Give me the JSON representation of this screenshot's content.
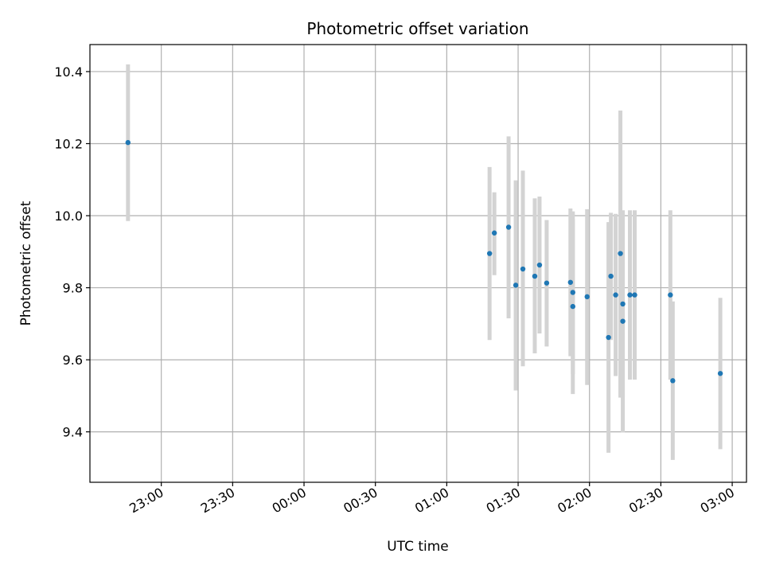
{
  "chart_data": {
    "type": "scatter",
    "title": "Photometric offset variation",
    "xlabel": "UTC time",
    "ylabel": "Photometric offset",
    "x_ticks": [
      "23:00",
      "23:30",
      "00:00",
      "00:30",
      "01:00",
      "01:30",
      "02:00",
      "02:30",
      "03:00"
    ],
    "y_ticks": [
      "9.4",
      "9.6",
      "9.8",
      "10.0",
      "10.2",
      "10.4"
    ],
    "y_tick_values": [
      9.4,
      9.6,
      9.8,
      10.0,
      10.2,
      10.4
    ],
    "xlim": [
      "22:30",
      "03:06"
    ],
    "ylim": [
      9.26,
      10.475
    ],
    "grid": true,
    "point_color": "#1f77b4",
    "errorbar_color": "#d3d3d3",
    "points": [
      {
        "x": "22:46",
        "y": 10.203,
        "yerr_low": 9.985,
        "yerr_high": 10.42
      },
      {
        "x": "01:18",
        "y": 9.895,
        "yerr_low": 9.655,
        "yerr_high": 10.135
      },
      {
        "x": "01:20",
        "y": 9.952,
        "yerr_low": 9.835,
        "yerr_high": 10.065
      },
      {
        "x": "01:26",
        "y": 9.968,
        "yerr_low": 9.715,
        "yerr_high": 10.22
      },
      {
        "x": "01:29",
        "y": 9.807,
        "yerr_low": 9.515,
        "yerr_high": 10.098
      },
      {
        "x": "01:32",
        "y": 9.852,
        "yerr_low": 9.582,
        "yerr_high": 10.125
      },
      {
        "x": "01:37",
        "y": 9.832,
        "yerr_low": 9.618,
        "yerr_high": 10.048
      },
      {
        "x": "01:39",
        "y": 9.863,
        "yerr_low": 9.673,
        "yerr_high": 10.053
      },
      {
        "x": "01:42",
        "y": 9.813,
        "yerr_low": 9.637,
        "yerr_high": 9.988
      },
      {
        "x": "01:52",
        "y": 9.815,
        "yerr_low": 9.61,
        "yerr_high": 10.02
      },
      {
        "x": "01:53",
        "y": 9.787,
        "yerr_low": 9.56,
        "yerr_high": 10.012
      },
      {
        "x": "01:53",
        "y": 9.748,
        "yerr_low": 9.505,
        "yerr_high": 9.99
      },
      {
        "x": "01:59",
        "y": 9.775,
        "yerr_low": 9.53,
        "yerr_high": 10.018
      },
      {
        "x": "02:08",
        "y": 9.662,
        "yerr_low": 9.342,
        "yerr_high": 9.982
      },
      {
        "x": "02:09",
        "y": 9.832,
        "yerr_low": 9.655,
        "yerr_high": 10.008
      },
      {
        "x": "02:11",
        "y": 9.78,
        "yerr_low": 9.555,
        "yerr_high": 10.005
      },
      {
        "x": "02:13",
        "y": 9.895,
        "yerr_low": 9.495,
        "yerr_high": 10.292
      },
      {
        "x": "02:14",
        "y": 9.707,
        "yerr_low": 9.398,
        "yerr_high": 10.015
      },
      {
        "x": "02:14",
        "y": 9.755,
        "yerr_low": 9.495,
        "yerr_high": 10.012
      },
      {
        "x": "02:17",
        "y": 9.78,
        "yerr_low": 9.545,
        "yerr_high": 10.015
      },
      {
        "x": "02:19",
        "y": 9.78,
        "yerr_low": 9.545,
        "yerr_high": 10.015
      },
      {
        "x": "02:34",
        "y": 9.78,
        "yerr_low": 9.545,
        "yerr_high": 10.015
      },
      {
        "x": "02:35",
        "y": 9.542,
        "yerr_low": 9.322,
        "yerr_high": 9.762
      },
      {
        "x": "02:55",
        "y": 9.562,
        "yerr_low": 9.352,
        "yerr_high": 9.772
      }
    ]
  }
}
